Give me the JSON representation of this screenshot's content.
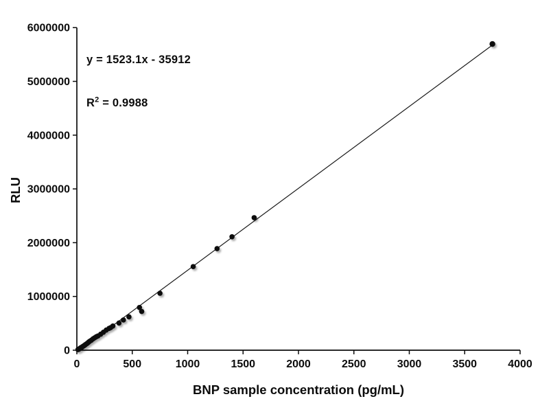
{
  "chart_data": {
    "type": "scatter",
    "title": "",
    "xlabel": "BNP sample concentration (pg/mL)",
    "ylabel": "RLU",
    "xlim": [
      0,
      4000
    ],
    "ylim": [
      0,
      6000000
    ],
    "x_ticks": [
      0,
      500,
      1000,
      1500,
      2000,
      2500,
      3000,
      3500,
      4000
    ],
    "y_ticks": [
      0,
      1000000,
      2000000,
      3000000,
      4000000,
      5000000,
      6000000
    ],
    "grid": false,
    "legend": "none",
    "equation": "y = 1523.1x - 35912",
    "r2_prefix": "R",
    "r2_sup": "2",
    "r2_value": " = 0.9988",
    "trendline": {
      "slope": 1523.1,
      "intercept": -35912,
      "x_start": 23.6,
      "x_end": 3750
    },
    "marker_color": "#0a0a0a",
    "line_color": "#1a1a1a",
    "axis_color": "#0c0c0c",
    "points": [
      [
        10,
        12000
      ],
      [
        15,
        16000
      ],
      [
        20,
        22000
      ],
      [
        25,
        30000
      ],
      [
        30,
        38000
      ],
      [
        35,
        45000
      ],
      [
        45,
        55000
      ],
      [
        50,
        65000
      ],
      [
        60,
        78000
      ],
      [
        70,
        92000
      ],
      [
        75,
        100000
      ],
      [
        85,
        115000
      ],
      [
        95,
        130000
      ],
      [
        105,
        148000
      ],
      [
        115,
        165000
      ],
      [
        130,
        185000
      ],
      [
        145,
        210000
      ],
      [
        160,
        230000
      ],
      [
        175,
        250000
      ],
      [
        190,
        264000
      ],
      [
        215,
        298000
      ],
      [
        240,
        335000
      ],
      [
        265,
        375000
      ],
      [
        290,
        405000
      ],
      [
        305,
        420000
      ],
      [
        325,
        450000
      ],
      [
        380,
        505000
      ],
      [
        420,
        562000
      ],
      [
        470,
        620000
      ],
      [
        565,
        795000
      ],
      [
        585,
        720000
      ],
      [
        750,
        1060000
      ],
      [
        1050,
        1555000
      ],
      [
        1265,
        1890000
      ],
      [
        1400,
        2110000
      ],
      [
        1600,
        2465000
      ],
      [
        3750,
        5695000
      ]
    ]
  }
}
